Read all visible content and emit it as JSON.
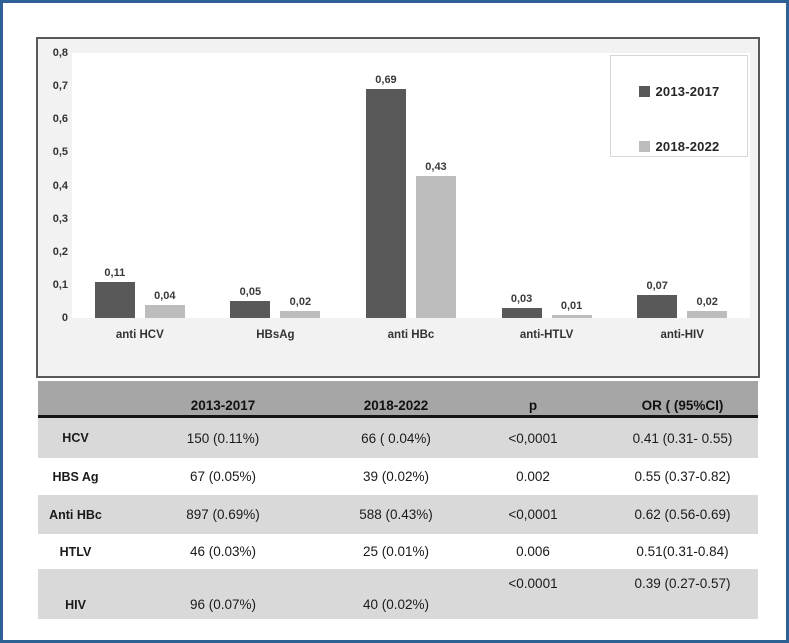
{
  "colors": {
    "page_border": "#2d6094",
    "figure_bg": "#f2f2f2",
    "figure_border": "#595959",
    "series_dark": "#595959",
    "series_light": "#bdbdbd",
    "table_header_bg": "#a6a6a6",
    "row_shaded_bg": "#d9d9d9"
  },
  "chart_data": {
    "type": "bar",
    "title": "",
    "xlabel": "",
    "ylabel": "",
    "categories": [
      "anti HCV",
      "HBsAg",
      "anti HBc",
      "anti-HTLV",
      "anti-HIV"
    ],
    "series": [
      {
        "name": "2013-2017",
        "color": "#595959",
        "values": [
          0.11,
          0.05,
          0.69,
          0.03,
          0.07
        ],
        "labels": [
          "0,11",
          "0,05",
          "0,69",
          "0,03",
          "0,07"
        ]
      },
      {
        "name": "2018-2022",
        "color": "#bdbdbd",
        "values": [
          0.04,
          0.02,
          0.43,
          0.01,
          0.02
        ],
        "labels": [
          "0,04",
          "0,02",
          "0,43",
          "0,01",
          "0,02"
        ]
      }
    ],
    "ylim": [
      0,
      0.8
    ],
    "yticks": [
      "0,8",
      "0,7",
      "0,6",
      "0,5",
      "0,4",
      "0,3",
      "0,2",
      "0,1",
      "0"
    ],
    "grid": false,
    "legend_position": "top-right"
  },
  "table": {
    "columns": [
      "",
      "2013-2017",
      "2018-2022",
      "p",
      "OR ( (95%CI)"
    ],
    "rows": [
      {
        "label": "HCV",
        "v1": "150 (0.11%)",
        "v2": "66 ( 0.04%)",
        "p": "<0,0001",
        "or": "0.41 (0.31- 0.55)",
        "shaded": true,
        "offset": false,
        "height": 40
      },
      {
        "label": "HBS Ag",
        "v1": "67 (0.05%)",
        "v2": "39 (0.02%)",
        "p": "0.002",
        "or": "0.55 (0.37-0.82)",
        "shaded": false,
        "offset": false,
        "height": 37
      },
      {
        "label": "Anti HBc",
        "v1": "897 (0.69%)",
        "v2": "588 (0.43%)",
        "p": "<0,0001",
        "or": "0.62 (0.56-0.69)",
        "shaded": true,
        "offset": false,
        "height": 39
      },
      {
        "label": "HTLV",
        "v1": "46 (0.03%)",
        "v2": "25 (0.01%)",
        "p": "0.006",
        "or": "0.51(0.31-0.84)",
        "shaded": false,
        "offset": false,
        "height": 35
      },
      {
        "label": "HIV",
        "v1": "96 (0.07%)",
        "v2": "40 (0.02%)",
        "p": "<0.0001",
        "or": "0.39 (0.27-0.57)",
        "shaded": true,
        "offset": true,
        "height": 50
      }
    ]
  }
}
